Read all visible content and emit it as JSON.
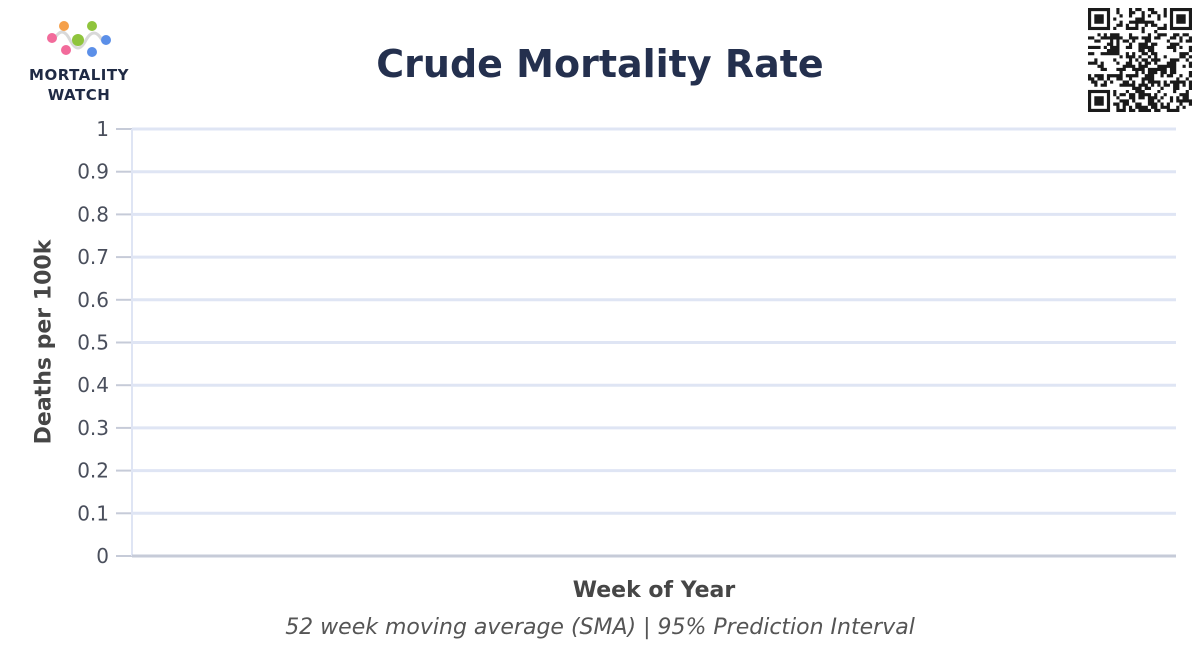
{
  "header": {
    "logo_text_line1": "MORTALITY",
    "logo_text_line2": "WATCH",
    "logo_dot_colors": [
      "#f26b9b",
      "#f5a04a",
      "#8fc43c",
      "#5b8fe8"
    ],
    "qr_icon": "qr-code-icon"
  },
  "chart_data": {
    "type": "line",
    "title": "Crude Mortality Rate",
    "xlabel": "Week of Year",
    "ylabel": "Deaths per 100k",
    "caption": "52 week moving average (SMA) | 95% Prediction Interval",
    "ylim": [
      0,
      1
    ],
    "yticks": [
      "0",
      "0.1",
      "0.2",
      "0.3",
      "0.4",
      "0.5",
      "0.6",
      "0.7",
      "0.8",
      "0.9",
      "1"
    ],
    "series": [],
    "grid": true,
    "colors": {
      "grid": "#dfe5f4",
      "axis": "#c6cbd8",
      "title": "#24304e"
    }
  }
}
